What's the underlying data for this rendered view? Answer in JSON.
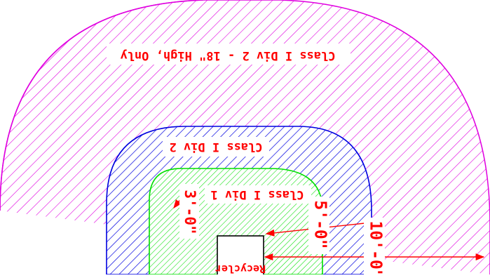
{
  "colors": {
    "background": "#ffffff",
    "zone_div2_18in": "#e000e0",
    "zone_div2": "#0000e0",
    "zone_div1": "#00e000",
    "label_text": "#ff0000",
    "dimension_line": "#ff0000",
    "equipment_outline": "#000000"
  },
  "zones": [
    {
      "key": "outer",
      "label": "Class I Div 2 - 18\" High, Only"
    },
    {
      "key": "middle",
      "label": "Class I Div 2"
    },
    {
      "key": "inner",
      "label": "Class I Div 1"
    }
  ],
  "dimensions": {
    "inner_radius": "3'-0\"",
    "middle_radius": "5'-0\"",
    "outer_radius": "10'-0\""
  },
  "equipment": {
    "label": "Recycler"
  }
}
